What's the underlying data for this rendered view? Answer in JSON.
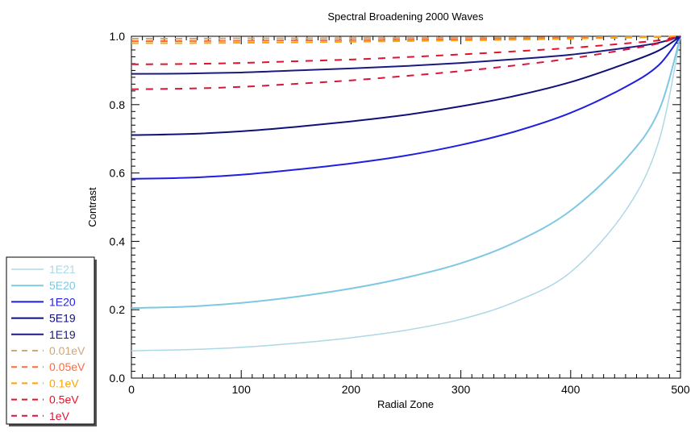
{
  "chart_data": {
    "type": "line",
    "title": "Spectral Broadening    2000 Waves",
    "xlabel": "Radial Zone",
    "ylabel": "Contrast",
    "xlim": [
      0,
      500
    ],
    "ylim": [
      0,
      1.0
    ],
    "xticks": [
      "0",
      "100",
      "200",
      "300",
      "400",
      "500"
    ],
    "yticks": [
      "0.0",
      "0.2",
      "0.4",
      "0.6",
      "0.8",
      "1.0"
    ],
    "grid": false,
    "legend_position": "bottom-left",
    "x": [
      0,
      50,
      100,
      150,
      200,
      250,
      300,
      350,
      400,
      450,
      480,
      500
    ],
    "series": [
      {
        "name": "1E21",
        "color": "#add8e6",
        "width": 1.5,
        "dash": "",
        "values": [
          0.08,
          0.083,
          0.09,
          0.102,
          0.118,
          0.14,
          0.172,
          0.224,
          0.31,
          0.49,
          0.69,
          1.0
        ]
      },
      {
        "name": "5E20",
        "color": "#7ec8e3",
        "width": 2,
        "dash": "",
        "values": [
          0.205,
          0.209,
          0.22,
          0.238,
          0.262,
          0.294,
          0.336,
          0.398,
          0.49,
          0.64,
          0.78,
          1.0
        ]
      },
      {
        "name": "1E20",
        "color": "#1f1fe0",
        "width": 2,
        "dash": "",
        "values": [
          0.583,
          0.586,
          0.595,
          0.61,
          0.628,
          0.651,
          0.682,
          0.722,
          0.776,
          0.852,
          0.915,
          1.0
        ]
      },
      {
        "name": "5E19",
        "color": "#10107a",
        "width": 2,
        "dash": "",
        "values": [
          0.711,
          0.714,
          0.722,
          0.735,
          0.751,
          0.77,
          0.795,
          0.826,
          0.866,
          0.92,
          0.958,
          1.0
        ]
      },
      {
        "name": "1E19",
        "color": "#1a1a80",
        "width": 2,
        "dash": "",
        "values": [
          0.89,
          0.891,
          0.894,
          0.9,
          0.906,
          0.913,
          0.922,
          0.933,
          0.946,
          0.966,
          0.981,
          1.0
        ]
      },
      {
        "name": "0.01eV",
        "color": "#d2a679",
        "width": 2,
        "dash": "9,9",
        "values": [
          0.993,
          0.993,
          0.994,
          0.994,
          0.995,
          0.995,
          0.996,
          0.996,
          0.997,
          0.998,
          0.999,
          1.0
        ]
      },
      {
        "name": "0.05eV",
        "color": "#ff6a3d",
        "width": 2,
        "dash": "9,9",
        "values": [
          0.986,
          0.986,
          0.987,
          0.988,
          0.989,
          0.99,
          0.991,
          0.993,
          0.995,
          0.997,
          0.998,
          1.0
        ]
      },
      {
        "name": "0.1eV",
        "color": "#ffa500",
        "width": 2,
        "dash": "9,9",
        "values": [
          0.98,
          0.98,
          0.981,
          0.982,
          0.984,
          0.986,
          0.988,
          0.99,
          0.993,
          0.996,
          0.998,
          1.0
        ]
      },
      {
        "name": "0.5eV",
        "color": "#e8102a",
        "width": 2,
        "dash": "9,9",
        "values": [
          0.918,
          0.919,
          0.922,
          0.927,
          0.932,
          0.939,
          0.947,
          0.956,
          0.966,
          0.979,
          0.988,
          1.0
        ]
      },
      {
        "name": "1eV",
        "color": "#dc143c",
        "width": 2,
        "dash": "9,9",
        "values": [
          0.845,
          0.847,
          0.852,
          0.861,
          0.871,
          0.884,
          0.898,
          0.915,
          0.935,
          0.961,
          0.979,
          1.0
        ]
      }
    ]
  }
}
